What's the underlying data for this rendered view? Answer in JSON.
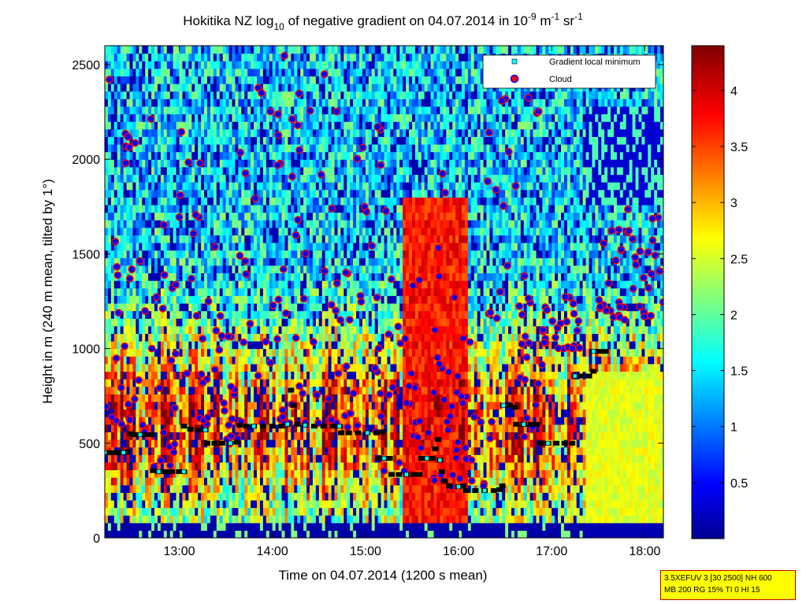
{
  "chart_data": {
    "type": "heatmap",
    "title_parts": {
      "t1": "Hokitika NZ log",
      "t2": "10",
      "t3": " of negative gradient on 04.07.2014 in 10",
      "t4": "-9",
      "t5": " m",
      "t6": "-1",
      "t7": " sr",
      "t8": "-1"
    },
    "xlabel": "Time on 04.07.2014 (1200 s mean)",
    "ylabel": "Height in m (240 m mean, tilted by 1°)",
    "xlim_hours": [
      12.2,
      18.2
    ],
    "ylim": [
      0,
      2600
    ],
    "x_tick_values": [
      13,
      14,
      15,
      16,
      17,
      18
    ],
    "x_tick_labels": [
      "13:00",
      "14:00",
      "15:00",
      "16:00",
      "17:00",
      "18:00"
    ],
    "y_tick_values": [
      0,
      500,
      1000,
      1500,
      2000,
      2500
    ],
    "y_tick_labels": [
      "0",
      "500",
      "1000",
      "1500",
      "2000",
      "2500"
    ],
    "colorbar": {
      "range": [
        0,
        4.4
      ],
      "tick_values": [
        0.5,
        1,
        1.5,
        2,
        2.5,
        3,
        3.5,
        4
      ],
      "tick_labels": [
        "0.5",
        "1",
        "1.5",
        "2",
        "2.5",
        "3",
        "3.5",
        "4"
      ],
      "colormap": "jet"
    },
    "legend": {
      "placement": "top-right",
      "entries": [
        {
          "label": "Gradient local minimum",
          "marker": "square",
          "color": "#00ffff"
        },
        {
          "label": "Cloud",
          "marker": "circle",
          "color": "#ff0000"
        }
      ]
    },
    "series": [
      {
        "name": "Gradient local minimum",
        "points": [
          [
            12.2,
            450
          ],
          [
            12.25,
            450
          ],
          [
            12.3,
            450
          ],
          [
            12.35,
            450
          ],
          [
            12.4,
            450
          ],
          [
            12.44,
            455
          ],
          [
            12.47,
            550
          ],
          [
            12.52,
            545
          ],
          [
            12.58,
            545
          ],
          [
            12.64,
            545
          ],
          [
            12.7,
            545
          ],
          [
            12.72,
            355
          ],
          [
            12.78,
            350
          ],
          [
            12.85,
            350
          ],
          [
            12.92,
            350
          ],
          [
            13.0,
            350
          ],
          [
            13.05,
            350
          ],
          [
            13.05,
            590
          ],
          [
            13.12,
            575
          ],
          [
            13.2,
            570
          ],
          [
            13.28,
            570
          ],
          [
            13.3,
            500
          ],
          [
            13.38,
            500
          ],
          [
            13.46,
            500
          ],
          [
            13.55,
            500
          ],
          [
            13.62,
            505
          ],
          [
            13.65,
            595
          ],
          [
            13.72,
            590
          ],
          [
            13.8,
            590
          ],
          [
            13.9,
            590
          ],
          [
            14.0,
            590
          ],
          [
            14.1,
            590
          ],
          [
            14.16,
            600
          ],
          [
            14.2,
            780
          ],
          [
            14.23,
            700
          ],
          [
            14.27,
            600
          ],
          [
            14.35,
            595
          ],
          [
            14.45,
            590
          ],
          [
            14.55,
            590
          ],
          [
            14.65,
            590
          ],
          [
            14.72,
            590
          ],
          [
            14.74,
            555
          ],
          [
            14.82,
            555
          ],
          [
            14.92,
            555
          ],
          [
            15.02,
            555
          ],
          [
            15.12,
            555
          ],
          [
            15.18,
            560
          ],
          [
            15.14,
            420
          ],
          [
            15.2,
            420
          ],
          [
            15.26,
            420
          ],
          [
            15.28,
            335
          ],
          [
            15.36,
            335
          ],
          [
            15.44,
            335
          ],
          [
            15.52,
            335
          ],
          [
            15.58,
            335
          ],
          [
            15.6,
            420
          ],
          [
            15.66,
            420
          ],
          [
            15.72,
            420
          ],
          [
            15.75,
            470
          ],
          [
            15.78,
            520
          ],
          [
            15.8,
            410
          ],
          [
            15.82,
            350
          ],
          [
            15.85,
            300
          ],
          [
            15.9,
            275
          ],
          [
            16.0,
            270
          ],
          [
            16.05,
            275
          ],
          [
            16.08,
            250
          ],
          [
            16.18,
            250
          ],
          [
            16.28,
            250
          ],
          [
            16.38,
            250
          ],
          [
            16.44,
            255
          ],
          [
            16.47,
            275
          ],
          [
            16.48,
            700
          ],
          [
            16.55,
            700
          ],
          [
            16.6,
            690
          ],
          [
            16.62,
            600
          ],
          [
            16.7,
            600
          ],
          [
            16.78,
            600
          ],
          [
            16.84,
            600
          ],
          [
            16.88,
            500
          ],
          [
            16.96,
            500
          ],
          [
            17.05,
            500
          ],
          [
            17.14,
            500
          ],
          [
            17.22,
            500
          ],
          [
            17.25,
            855
          ],
          [
            17.32,
            855
          ],
          [
            17.4,
            855
          ],
          [
            17.45,
            880
          ],
          [
            17.45,
            985
          ],
          [
            17.52,
            985
          ],
          [
            17.58,
            985
          ]
        ]
      },
      {
        "name": "Cloud",
        "description_note": "",
        "regions": [
          {
            "t": [
              12.2,
              12.45
            ],
            "h": [
              600,
              2500
            ]
          },
          {
            "t": [
              12.45,
              12.7
            ],
            "h": [
              550,
              2550
            ]
          },
          {
            "t": [
              12.7,
              13.0
            ],
            "h": [
              370,
              1800
            ]
          },
          {
            "t": [
              13.0,
              13.3
            ],
            "h": [
              560,
              2200
            ]
          },
          {
            "t": [
              13.3,
              13.65
            ],
            "h": [
              520,
              1550
            ]
          },
          {
            "t": [
              13.65,
              14.15
            ],
            "h": [
              600,
              2580
            ]
          },
          {
            "t": [
              14.15,
              14.75
            ],
            "h": [
              600,
              2450
            ]
          },
          {
            "t": [
              14.75,
              15.2
            ],
            "h": [
              560,
              2200
            ]
          },
          {
            "t": [
              15.2,
              15.6
            ],
            "h": [
              350,
              2000
            ]
          },
          {
            "t": [
              15.6,
              15.9
            ],
            "h": [
              300,
              2400
            ]
          },
          {
            "t": [
              15.9,
              16.3
            ],
            "h": [
              270,
              1400
            ]
          },
          {
            "t": [
              16.3,
              16.9
            ],
            "h": [
              520,
              2350
            ]
          },
          {
            "t": [
              16.9,
              17.3
            ],
            "h": [
              1000,
              1300
            ]
          },
          {
            "t": [
              17.5,
              18.2
            ],
            "h": [
              1150,
              1750
            ]
          }
        ]
      }
    ]
  },
  "info_box": {
    "line1": "3.5XEFUV 3 [30 2500] NH 600",
    "line2": "MB 200 RG 15% TI 0 HI 15"
  }
}
